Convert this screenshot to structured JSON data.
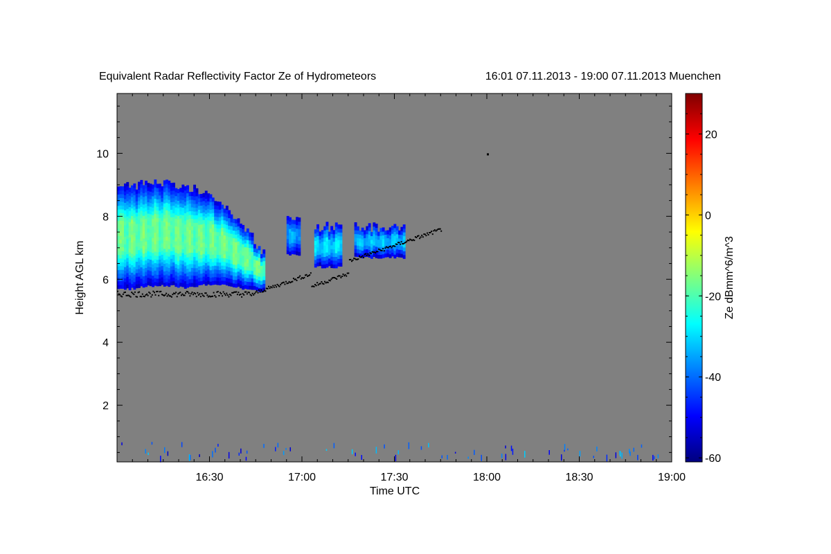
{
  "chart_data": {
    "type": "heatmap",
    "title": "Equivalent Radar Reflectivity Factor Ze of Hydrometeors",
    "title_period": "16:01 07.11.2013 - 19:00 07.11.2013 Muenchen",
    "xlabel": "Time UTC",
    "ylabel": "Height AGL km",
    "colorbar_label": "Ze dBmm^6/m^3",
    "x_ticks": [
      "16:30",
      "17:00",
      "17:30",
      "18:00",
      "18:30",
      "19:00"
    ],
    "x_tick_minutes": [
      30,
      60,
      90,
      120,
      150,
      180
    ],
    "xlim_minutes": [
      0,
      180
    ],
    "y_ticks": [
      2,
      4,
      6,
      8,
      10
    ],
    "ylim": [
      0.2,
      11.9
    ],
    "colorbar_ticks": [
      -60,
      -40,
      -20,
      0,
      20
    ],
    "colorbar_range": [
      -61,
      30
    ],
    "background_color": "#808080",
    "colormap": [
      "#00007f",
      "#0000ff",
      "#007fff",
      "#00ffff",
      "#7fff7f",
      "#ffff00",
      "#ff7f00",
      "#ff0000",
      "#7f0000"
    ],
    "cloud_layers": [
      {
        "name": "main",
        "time_start": 0,
        "time_end": 48,
        "top_km": [
          8.9,
          8.9,
          9.0,
          9.05,
          8.95,
          8.9,
          8.75,
          8.55,
          8.25,
          7.75,
          7.25,
          6.7
        ],
        "base_km": [
          5.7,
          5.7,
          5.8,
          5.8,
          5.8,
          5.75,
          5.8,
          5.85,
          5.85,
          5.75,
          5.65,
          5.6
        ],
        "peak_ze": -18
      },
      {
        "name": "cell1",
        "time_start": 55,
        "time_end": 59,
        "top_km": 7.9,
        "base_km": 6.8,
        "peak_ze": -35
      },
      {
        "name": "cell2",
        "time_start": 64,
        "time_end": 73,
        "top_km": 7.6,
        "base_km": 6.4,
        "peak_ze": -30
      },
      {
        "name": "cell3",
        "time_start": 77,
        "time_end": 93,
        "top_km": 7.6,
        "base_km": 6.7,
        "peak_ze": -33
      }
    ],
    "base_dots": {
      "time_start": 0,
      "time_end": 105,
      "base_km_start": 5.55,
      "base_km_end": 7.6
    },
    "isolated_dots": [
      {
        "time": 120,
        "height_km": 10.0
      }
    ]
  }
}
